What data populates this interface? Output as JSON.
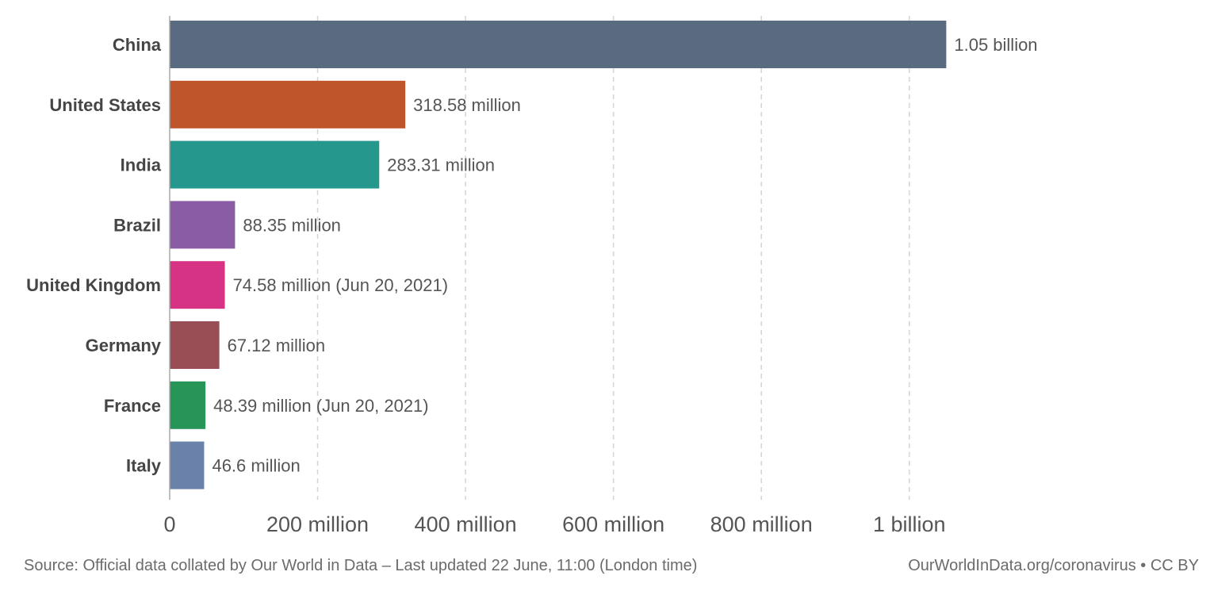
{
  "chart_data": {
    "type": "bar",
    "orientation": "horizontal",
    "categories": [
      "China",
      "United States",
      "India",
      "Brazil",
      "United Kingdom",
      "Germany",
      "France",
      "Italy"
    ],
    "values": [
      1050000000,
      318580000,
      283310000,
      88350000,
      74580000,
      67120000,
      48390000,
      46600000
    ],
    "value_labels": [
      "1.05 billion",
      "318.58 million",
      "283.31 million",
      "88.35 million",
      "74.58 million (Jun 20, 2021)",
      "67.12 million",
      "48.39 million (Jun 20, 2021)",
      "46.6 million"
    ],
    "colors": [
      "#5a6a80",
      "#bf552b",
      "#25978d",
      "#8a5ca5",
      "#d63384",
      "#994e55",
      "#289558",
      "#6a81a9"
    ],
    "xlim": [
      0,
      1100000000
    ],
    "x_ticks": [
      0,
      200000000,
      400000000,
      600000000,
      800000000,
      1000000000
    ],
    "x_tick_labels": [
      "0",
      "200 million",
      "400 million",
      "600 million",
      "800 million",
      "1 billion"
    ],
    "grid": "vertical dashed",
    "title": "",
    "xlabel": "",
    "ylabel": ""
  },
  "footer": {
    "source": "Source: Official data collated by Our World in Data – Last updated 22 June, 11:00 (London time)",
    "credit": "OurWorldInData.org/coronavirus • CC BY"
  }
}
